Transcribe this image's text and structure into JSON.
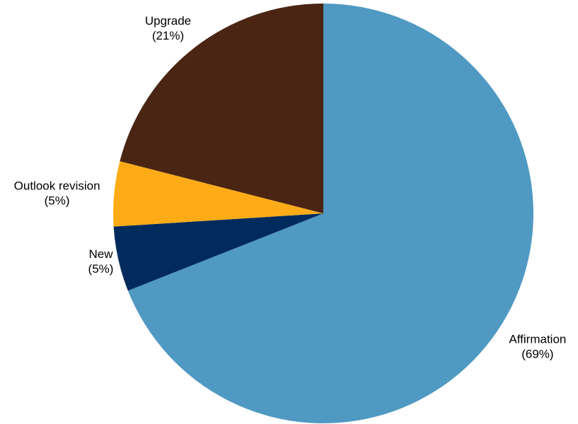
{
  "chart_data": {
    "type": "pie",
    "title": "",
    "start_angle_deg": 0,
    "direction": "clockwise",
    "slices": [
      {
        "name": "Affirmation",
        "pct_label": "(69%)",
        "value": 69,
        "color": "#4F99C3"
      },
      {
        "name": "New",
        "pct_label": "(5%)",
        "value": 5,
        "color": "#002B5C"
      },
      {
        "name": "Outlook revision",
        "pct_label": "(5%)",
        "value": 5,
        "color": "#FDAC18"
      },
      {
        "name": "Upgrade",
        "pct_label": "(21%)",
        "value": 21,
        "color": "#4A2514"
      }
    ]
  }
}
